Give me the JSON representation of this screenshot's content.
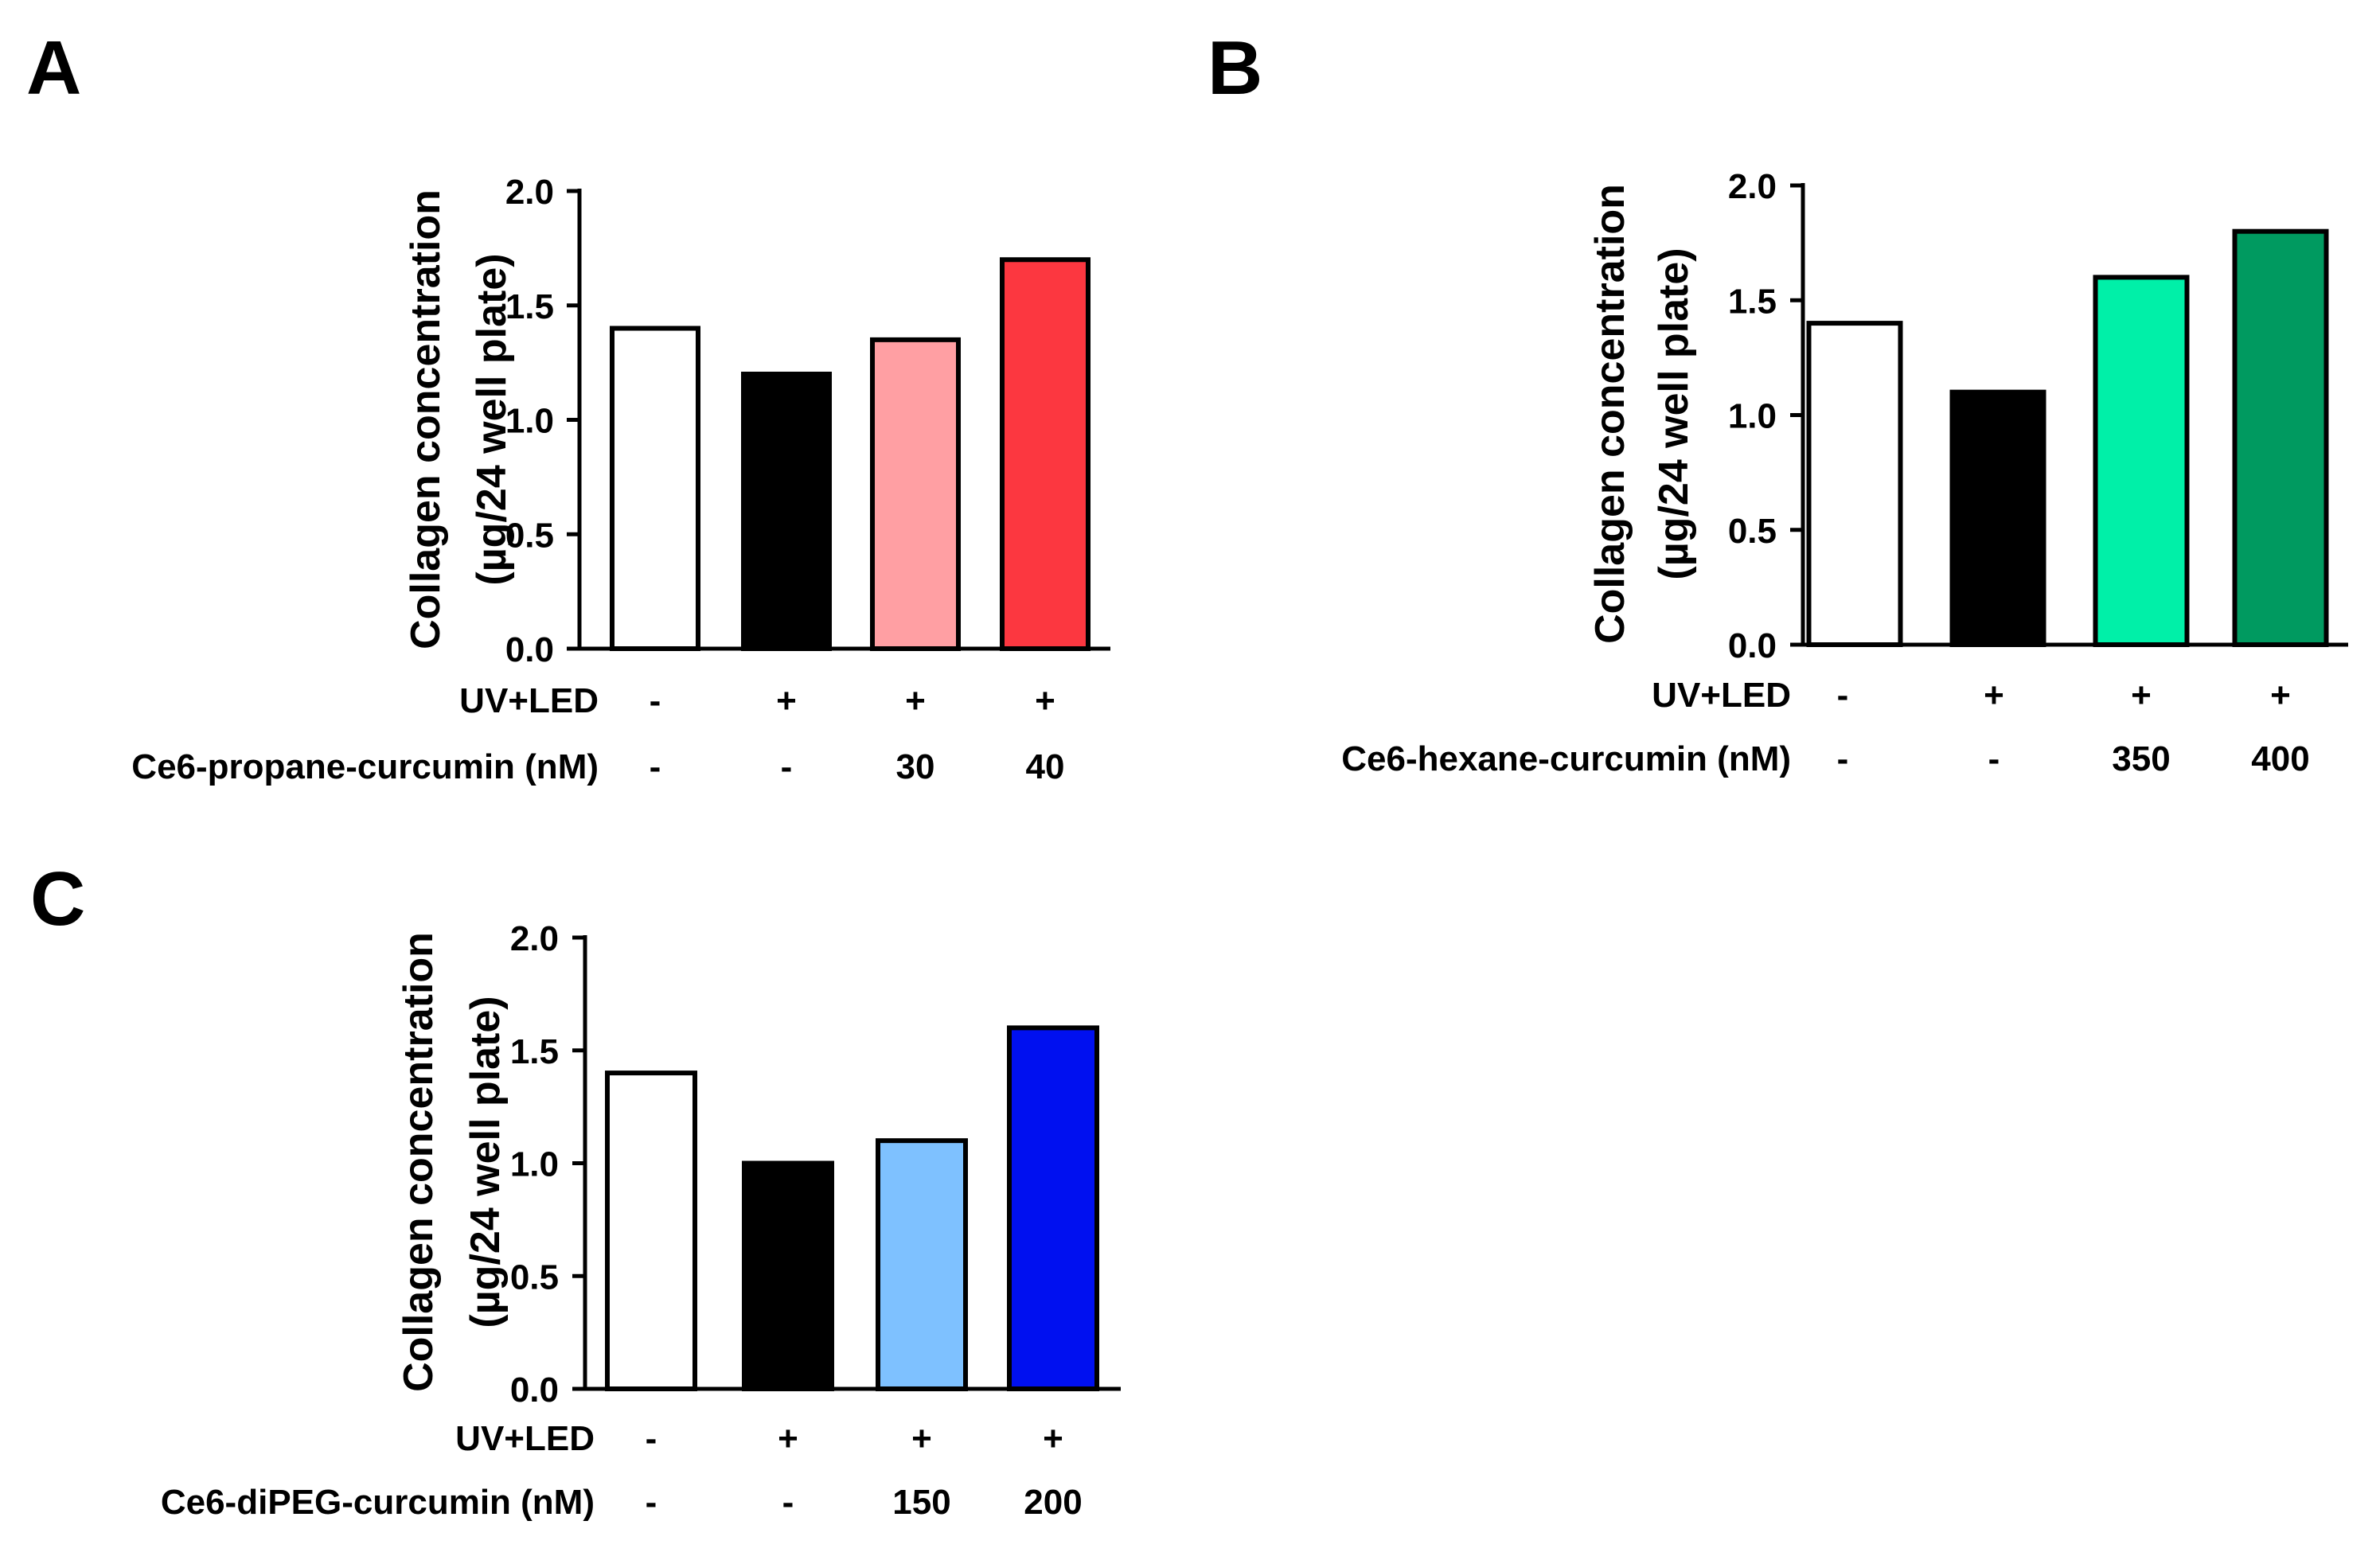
{
  "chart_data": [
    {
      "type": "bar",
      "panel": "A",
      "title": "",
      "xlabel": "",
      "ylabel": [
        "Collagen concentration",
        "(µg/24 well plate)"
      ],
      "ylim": [
        0,
        2.0
      ],
      "yticks": [
        "0.0",
        "0.5",
        "1.0",
        "1.5",
        "2.0"
      ],
      "yticks_values": [
        0,
        0.5,
        1.0,
        1.5,
        2.0
      ],
      "grid": false,
      "series": [
        {
          "name": "Collagen concentration",
          "values": [
            1.4,
            1.2,
            1.35,
            1.7
          ]
        }
      ],
      "bar_colors": [
        "#ffffff",
        "#000000",
        "#ff9fa3",
        "#fc3740"
      ],
      "conditions": [
        {
          "label": "UV+LED",
          "values": [
            "-",
            "+",
            "+",
            "+"
          ]
        },
        {
          "label": "Ce6-propane-curcumin (nM)",
          "values": [
            "-",
            "-",
            "30",
            "40"
          ]
        }
      ]
    },
    {
      "type": "bar",
      "panel": "B",
      "title": "",
      "xlabel": "",
      "ylabel": [
        "Collagen concentration",
        "(µg/24 well plate)"
      ],
      "ylim": [
        0,
        2.0
      ],
      "yticks": [
        "0.0",
        "0.5",
        "1.0",
        "1.5",
        "2.0"
      ],
      "yticks_values": [
        0,
        0.5,
        1.0,
        1.5,
        2.0
      ],
      "grid": false,
      "series": [
        {
          "name": "Collagen concentration",
          "values": [
            1.4,
            1.1,
            1.6,
            1.8
          ]
        }
      ],
      "bar_colors": [
        "#ffffff",
        "#000000",
        "#00f0a8",
        "#009a60"
      ],
      "conditions": [
        {
          "label": "UV+LED",
          "values": [
            "-",
            "+",
            "+",
            "+"
          ]
        },
        {
          "label": "Ce6-hexane-curcumin (nM)",
          "values": [
            "-",
            "-",
            "350",
            "400"
          ]
        }
      ]
    },
    {
      "type": "bar",
      "panel": "C",
      "title": "",
      "xlabel": "",
      "ylabel": [
        "Collagen concentration",
        "(µg/24 well plate)"
      ],
      "ylim": [
        0,
        2.0
      ],
      "yticks": [
        "0.0",
        "0.5",
        "1.0",
        "1.5",
        "2.0"
      ],
      "yticks_values": [
        0,
        0.5,
        1.0,
        1.5,
        2.0
      ],
      "grid": false,
      "series": [
        {
          "name": "Collagen concentration",
          "values": [
            1.4,
            1.0,
            1.1,
            1.6
          ]
        }
      ],
      "bar_colors": [
        "#ffffff",
        "#000000",
        "#7ec1ff",
        "#0010f0"
      ],
      "conditions": [
        {
          "label": "UV+LED",
          "values": [
            "-",
            "+",
            "+",
            "+"
          ]
        },
        {
          "label": "Ce6-diPEG-curcumin (nM)",
          "values": [
            "-",
            "-",
            "150",
            "200"
          ]
        }
      ]
    }
  ]
}
